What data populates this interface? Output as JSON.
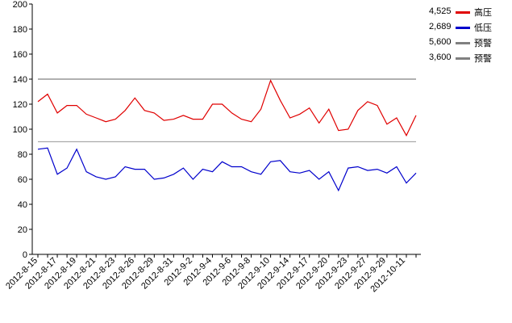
{
  "chart_data": {
    "type": "line",
    "title": "",
    "xlabel": "",
    "ylabel": "",
    "ylim": [
      0,
      200
    ],
    "yticks": [
      0,
      20,
      40,
      60,
      80,
      100,
      120,
      140,
      160,
      180,
      200
    ],
    "grid": false,
    "legend_position": "top-right",
    "x_tick_labels": [
      "2012-8-15",
      "2012-8-17",
      "2012-8-19",
      "2012-8-21",
      "2012-8-23",
      "2012-8-26",
      "2012-8-29",
      "2012-8-31",
      "2012-9-2",
      "2012-9-4",
      "2012-9-6",
      "2012-9-8",
      "2012-9-10",
      "2012-9-14",
      "2012-9-17",
      "2012-9-20",
      "2012-9-23",
      "2012-9-27",
      "2012-9-29",
      "2012-10-11"
    ],
    "series": [
      {
        "name": "高压",
        "legend_value": "4,525",
        "color": "#e00000",
        "values": [
          122,
          128,
          113,
          119,
          119,
          112,
          109,
          106,
          108,
          115,
          125,
          115,
          113,
          107,
          108,
          111,
          108,
          108,
          120,
          120,
          113,
          108,
          106,
          116,
          139,
          123,
          109,
          112,
          117,
          105,
          116,
          99,
          100,
          115,
          122,
          119,
          104,
          109,
          95,
          111
        ]
      },
      {
        "name": "低压",
        "legend_value": "2,689",
        "color": "#0000cc",
        "values": [
          84,
          85,
          64,
          69,
          84,
          66,
          62,
          60,
          62,
          70,
          68,
          68,
          60,
          61,
          64,
          69,
          60,
          68,
          66,
          74,
          70,
          70,
          66,
          64,
          74,
          75,
          66,
          65,
          67,
          60,
          66,
          51,
          69,
          70,
          67,
          68,
          65,
          70,
          57,
          65
        ]
      },
      {
        "name": "预警",
        "legend_value": "5,600",
        "color": "#808080",
        "constant": 140
      },
      {
        "name": "预警",
        "legend_value": "3,600",
        "color": "#aaaaaa",
        "constant": 90
      }
    ]
  }
}
